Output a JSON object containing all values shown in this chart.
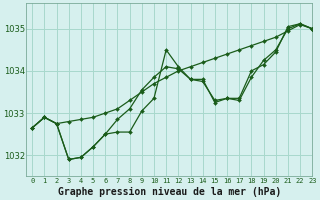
{
  "title": "Graphe pression niveau de la mer (hPa)",
  "background_color": "#d6f0ee",
  "grid_color": "#a8d8cc",
  "line_color": "#1a5c1a",
  "marker_color": "#1a5c1a",
  "xlim": [
    -0.5,
    23
  ],
  "ylim": [
    1031.5,
    1035.6
  ],
  "yticks": [
    1032,
    1033,
    1034,
    1035
  ],
  "xticks": [
    0,
    1,
    2,
    3,
    4,
    5,
    6,
    7,
    8,
    9,
    10,
    11,
    12,
    13,
    14,
    15,
    16,
    17,
    18,
    19,
    20,
    21,
    22,
    23
  ],
  "series1_x": [
    0,
    1,
    2,
    3,
    4,
    5,
    6,
    7,
    8,
    9,
    10,
    11,
    12,
    13,
    14,
    15,
    16,
    17,
    18,
    19,
    20,
    21,
    22,
    23
  ],
  "series1_y": [
    1032.65,
    1032.9,
    1032.75,
    1032.8,
    1032.85,
    1032.9,
    1033.0,
    1033.1,
    1033.3,
    1033.5,
    1033.7,
    1033.85,
    1034.0,
    1034.1,
    1034.2,
    1034.3,
    1034.4,
    1034.5,
    1034.6,
    1034.7,
    1034.8,
    1034.95,
    1035.1,
    1035.0
  ],
  "series2_x": [
    0,
    1,
    2,
    3,
    4,
    5,
    6,
    7,
    8,
    9,
    10,
    11,
    12,
    13,
    14,
    15,
    16,
    17,
    18,
    19,
    20,
    21,
    22,
    23
  ],
  "series2_y": [
    1032.65,
    1032.9,
    1032.75,
    1031.9,
    1031.95,
    1032.2,
    1032.5,
    1032.55,
    1032.55,
    1033.05,
    1033.35,
    1034.5,
    1034.1,
    1033.8,
    1033.8,
    1033.25,
    1033.35,
    1033.35,
    1034.0,
    1034.15,
    1034.45,
    1035.05,
    1035.12,
    1035.0
  ],
  "series3_x": [
    0,
    1,
    2,
    3,
    4,
    5,
    6,
    7,
    8,
    9,
    10,
    11,
    12,
    13,
    14,
    15,
    16,
    17,
    18,
    19,
    20,
    21,
    22,
    23
  ],
  "series3_y": [
    1032.65,
    1032.9,
    1032.75,
    1031.9,
    1031.95,
    1032.2,
    1032.5,
    1032.85,
    1033.1,
    1033.55,
    1033.85,
    1034.1,
    1034.05,
    1033.8,
    1033.75,
    1033.3,
    1033.35,
    1033.3,
    1033.85,
    1034.25,
    1034.5,
    1035.0,
    1035.12,
    1035.0
  ],
  "xlabel_fontsize": 7,
  "tick_fontsize": 6
}
